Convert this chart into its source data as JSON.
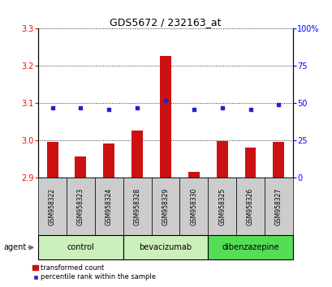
{
  "title": "GDS5672 / 232163_at",
  "samples": [
    "GSM958322",
    "GSM958323",
    "GSM958324",
    "GSM958328",
    "GSM958329",
    "GSM958330",
    "GSM958325",
    "GSM958326",
    "GSM958327"
  ],
  "bar_values": [
    2.997,
    2.958,
    2.993,
    3.027,
    3.227,
    2.917,
    2.998,
    2.982,
    2.997
  ],
  "percentile_values": [
    47,
    47,
    46,
    47,
    52,
    46,
    47,
    46,
    49
  ],
  "ylim_left": [
    2.9,
    3.3
  ],
  "ylim_right": [
    0,
    100
  ],
  "yticks_left": [
    2.9,
    3.0,
    3.1,
    3.2,
    3.3
  ],
  "yticks_right": [
    0,
    25,
    50,
    75,
    100
  ],
  "bar_color": "#cc1111",
  "percentile_color": "#2222cc",
  "sample_bg_color": "#cccccc",
  "group_color_light": "#ccf0bb",
  "group_color_dark": "#55dd55",
  "legend_bar_label": "transformed count",
  "legend_dot_label": "percentile rank within the sample",
  "agent_label": "agent",
  "groups": [
    {
      "label": "control",
      "indices": [
        0,
        1,
        2
      ],
      "dark": false
    },
    {
      "label": "bevacizumab",
      "indices": [
        3,
        4,
        5
      ],
      "dark": false
    },
    {
      "label": "dibenzazepine",
      "indices": [
        6,
        7,
        8
      ],
      "dark": true
    }
  ]
}
